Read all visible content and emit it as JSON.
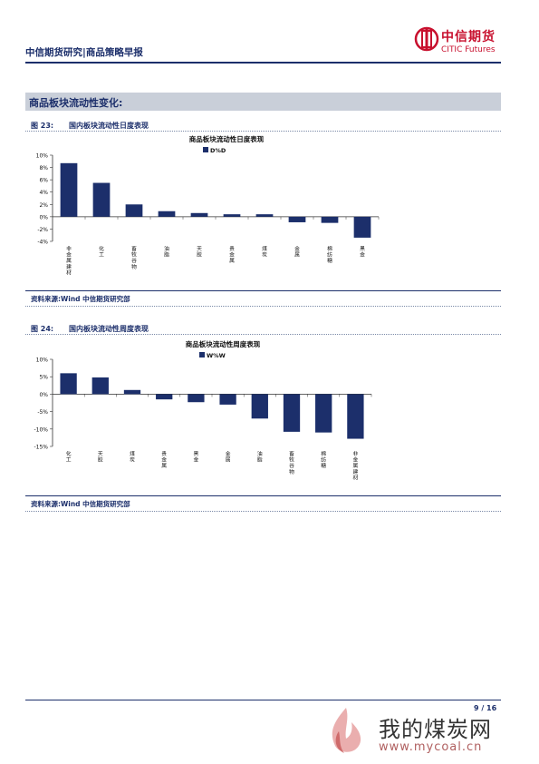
{
  "header": {
    "title": "中信期货研究|商品策略早报",
    "logo_cn": "中信期货",
    "logo_en": "CITIC Futures"
  },
  "section": {
    "title": "商品板块流动性变化:"
  },
  "figures": [
    {
      "num": "图 23:",
      "caption": "国内板块流动性日度表现",
      "source": "资料来源:Wind 中信期货研究部"
    },
    {
      "num": "图 24:",
      "caption": "国内板块流动性周度表现",
      "source": "资料来源:Wind 中信期货研究部"
    }
  ],
  "chart_data": [
    {
      "type": "bar",
      "title": "商品板块流动性日度表现",
      "series": [
        {
          "name": "D%D",
          "values": [
            8.7,
            5.5,
            2.0,
            0.9,
            0.6,
            0.4,
            0.4,
            -0.9,
            -1.0,
            -3.4
          ]
        }
      ],
      "categories": [
        "非金属建材",
        "化工",
        "畜牧谷物",
        "油脂",
        "天胶",
        "贵金属",
        "煤炭",
        "金属",
        "棉纺糖",
        "黑金"
      ],
      "yticks": [
        "10%",
        "8%",
        "6%",
        "4%",
        "2%",
        "0%",
        "-2%",
        "-4%"
      ],
      "ylim": [
        -4,
        10
      ],
      "color": "#1c2f6b"
    },
    {
      "type": "bar",
      "title": "商品板块流动性周度表现",
      "series": [
        {
          "name": "W%W",
          "values": [
            6.0,
            4.8,
            1.2,
            -1.5,
            -2.3,
            -3.0,
            -7.0,
            -10.8,
            -11.0,
            -12.8
          ]
        }
      ],
      "categories": [
        "化工",
        "天胶",
        "煤炭",
        "贵金属",
        "黑金",
        "金属",
        "油脂",
        "畜牧谷物",
        "棉纺糖",
        "非金属建材"
      ],
      "yticks": [
        "10%",
        "5%",
        "0%",
        "-5%",
        "-10%",
        "-15%"
      ],
      "ylim": [
        -15,
        10
      ],
      "color": "#1c2f6b"
    }
  ],
  "footer": {
    "page": "9 / 16"
  },
  "watermark": {
    "text": "我的煤炭网",
    "url": "www.mycoal.cn"
  }
}
